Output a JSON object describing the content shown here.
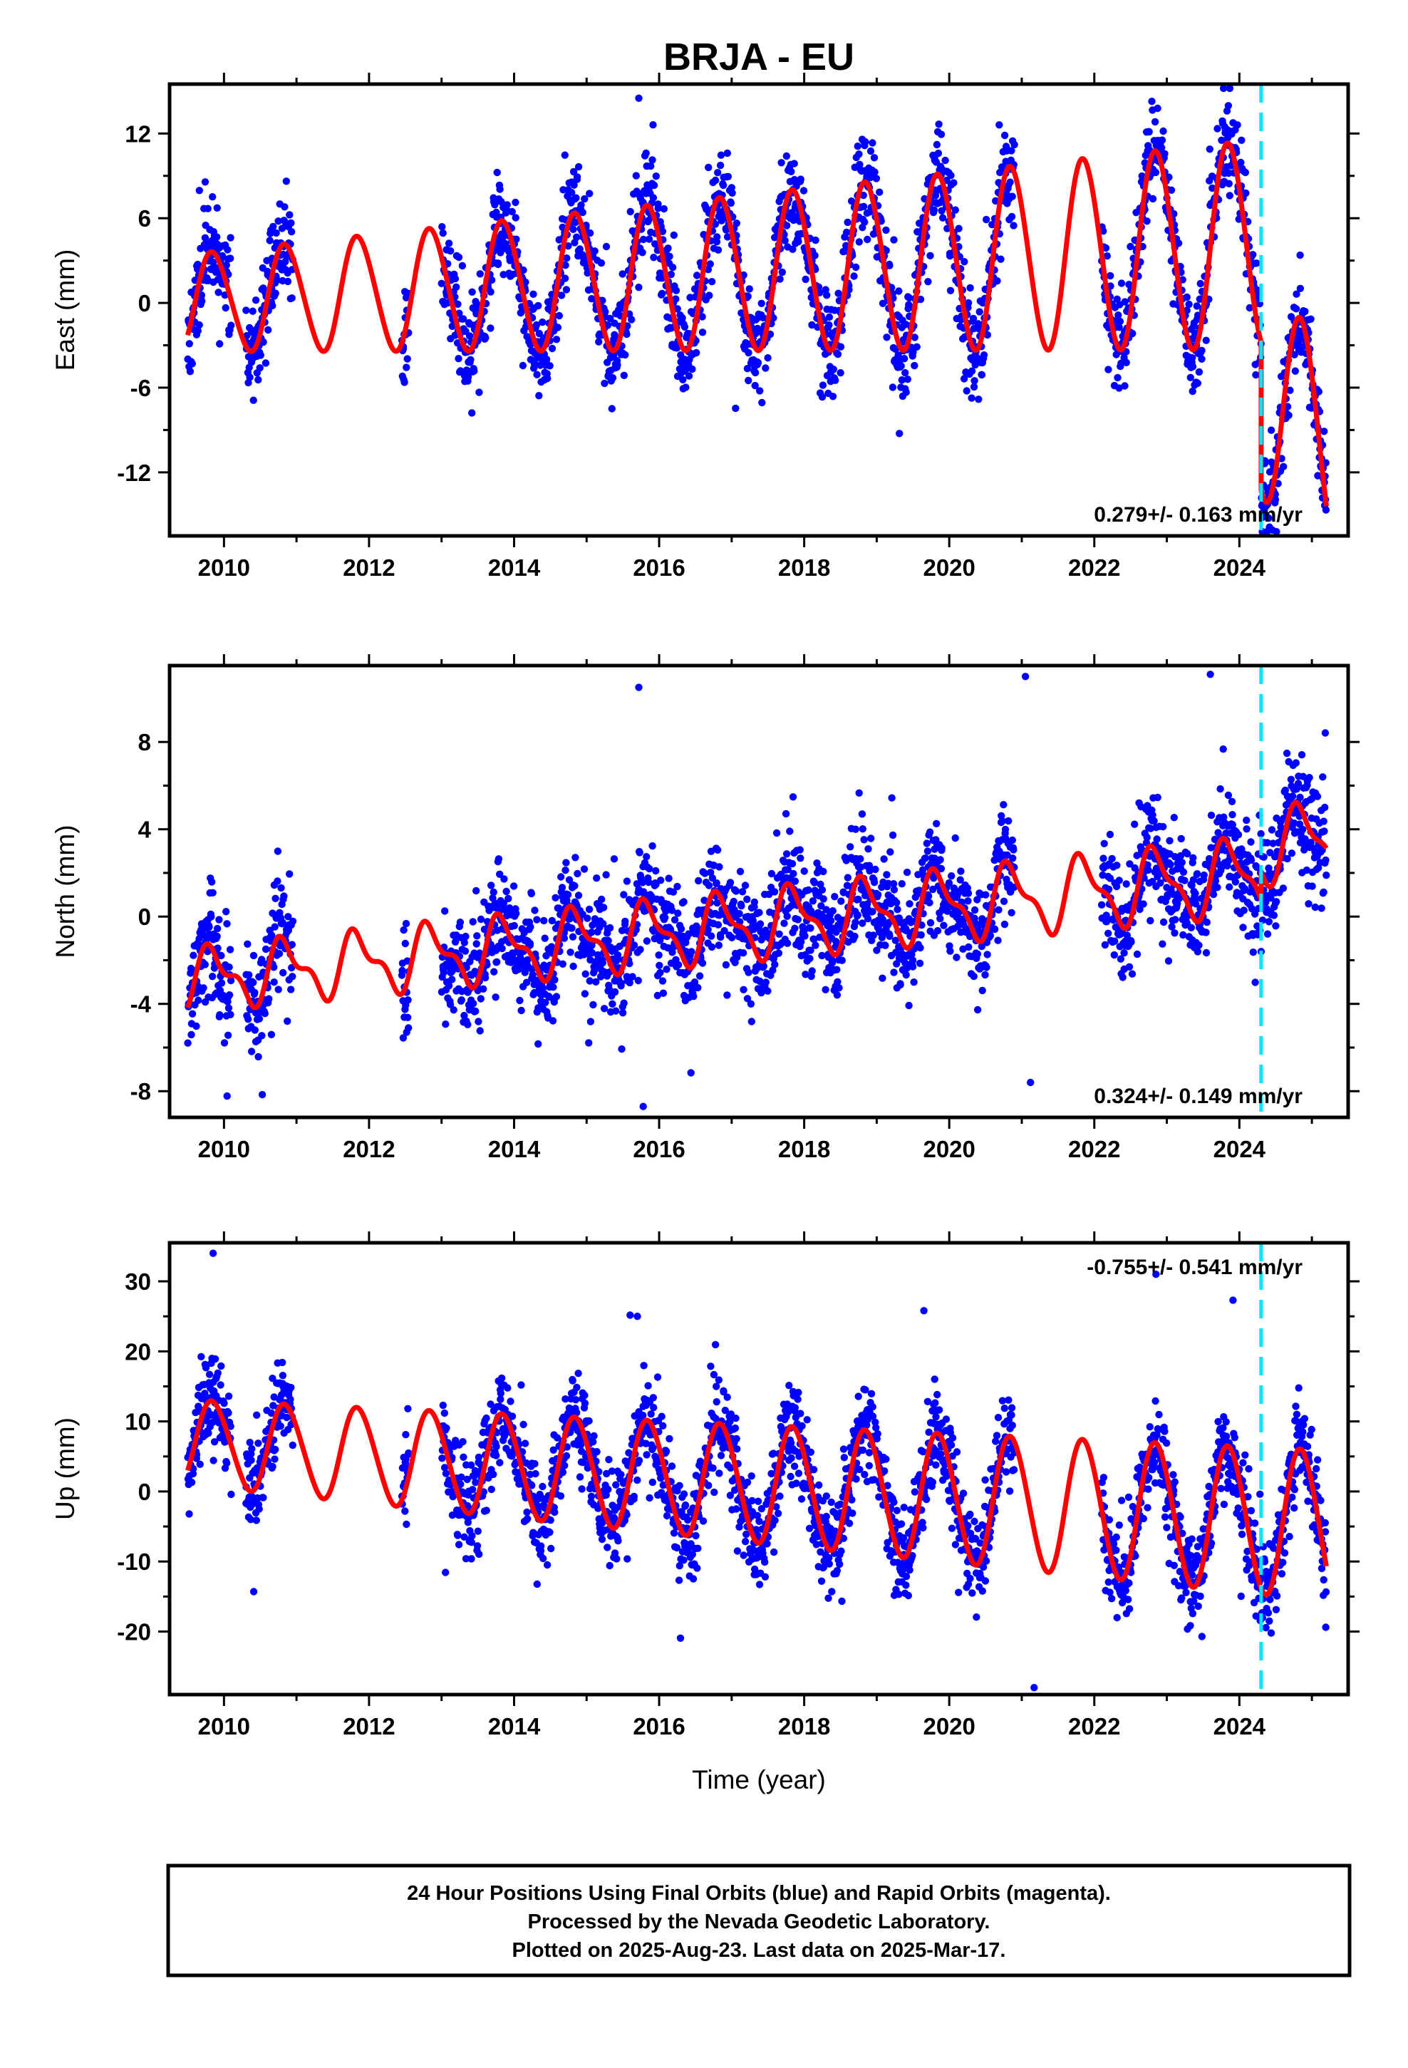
{
  "page_title": "BRJA - EU",
  "chart_data": [
    {
      "id": "east",
      "type": "scatter",
      "ylabel": "East (mm)",
      "xlim": [
        2009.25,
        2025.5
      ],
      "ylim": [
        -16.5,
        15.5
      ],
      "xticks": [
        2010,
        2012,
        2014,
        2016,
        2018,
        2020,
        2022,
        2024
      ],
      "yticks": [
        12,
        6,
        0,
        -6,
        -12
      ],
      "x_tick_labels": [
        "2010",
        "2012",
        "2014",
        "2016",
        "2018",
        "2020",
        "2022",
        "2024"
      ],
      "y_tick_labels": [
        "12",
        "6",
        "0",
        "-6",
        "-12"
      ],
      "rate_label": "0.279+/- 0.163 mm/yr",
      "rate_position": "bottom-right",
      "equipment_change_x": 2024.3,
      "model": {
        "offset": 0.0,
        "trend": 0.279,
        "annual_amplitude": 3.4,
        "annual_growth": 0.08,
        "semiannual_amplitude": 0.3,
        "step_at": 2024.3,
        "step_size": -10.5,
        "post_step_trend": -4.5
      },
      "data_segments": [
        [
          2009.5,
          2010.1
        ],
        [
          2010.3,
          2010.95
        ],
        [
          2012.45,
          2012.55
        ],
        [
          2013.0,
          2020.9
        ],
        [
          2022.1,
          2025.2
        ]
      ],
      "scatter": 4.3,
      "outliers": [
        [
          2015.72,
          14.5
        ],
        [
          2022.82,
          10.3
        ]
      ],
      "series": [
        {
          "name": "Final Orbits",
          "color": "#0000ff"
        },
        {
          "name": "Model",
          "color": "#ff0000"
        }
      ]
    },
    {
      "id": "north",
      "type": "scatter",
      "ylabel": "North (mm)",
      "xlim": [
        2009.25,
        2025.5
      ],
      "ylim": [
        -9.2,
        11.5
      ],
      "xticks": [
        2010,
        2012,
        2014,
        2016,
        2018,
        2020,
        2022,
        2024
      ],
      "yticks": [
        8,
        4,
        0,
        -4,
        -8
      ],
      "x_tick_labels": [
        "2010",
        "2012",
        "2014",
        "2016",
        "2018",
        "2020",
        "2022",
        "2024"
      ],
      "y_tick_labels": [
        "8",
        "4",
        "0",
        "-4",
        "-8"
      ],
      "rate_label": "0.324+/- 0.149 mm/yr",
      "rate_position": "bottom-right",
      "equipment_change_x": 2024.3,
      "model": {
        "offset": -2.9,
        "trend": 0.324,
        "annual_amplitude": 1.2,
        "annual_growth": 0.02,
        "semiannual_amplitude": 0.6,
        "step_at": 2024.3,
        "step_size": 1.3,
        "post_step_trend": 0.0
      },
      "data_segments": [
        [
          2009.5,
          2010.1
        ],
        [
          2010.3,
          2010.95
        ],
        [
          2012.45,
          2012.55
        ],
        [
          2013.0,
          2020.9
        ],
        [
          2022.1,
          2025.2
        ]
      ],
      "scatter": 3.0,
      "outliers": [
        [
          2015.72,
          10.5
        ],
        [
          2015.78,
          -8.7
        ],
        [
          2021.05,
          11.0
        ],
        [
          2023.6,
          11.1
        ],
        [
          2021.12,
          -7.6
        ]
      ],
      "series": [
        {
          "name": "Final Orbits",
          "color": "#0000ff"
        },
        {
          "name": "Model",
          "color": "#ff0000"
        }
      ]
    },
    {
      "id": "up",
      "type": "scatter",
      "ylabel": "Up (mm)",
      "xlabel": "Time (year)",
      "xlim": [
        2009.25,
        2025.5
      ],
      "ylim": [
        -29.0,
        35.5
      ],
      "xticks": [
        2010,
        2012,
        2014,
        2016,
        2018,
        2020,
        2022,
        2024
      ],
      "yticks": [
        30,
        20,
        10,
        0,
        -10,
        -20
      ],
      "x_tick_labels": [
        "2010",
        "2012",
        "2014",
        "2016",
        "2018",
        "2020",
        "2022",
        "2024"
      ],
      "y_tick_labels": [
        "30",
        "20",
        "10",
        "0",
        "-10",
        "-20"
      ],
      "rate_label": "-0.755+/- 0.541 mm/yr",
      "rate_position": "top-right",
      "equipment_change_x": 2024.3,
      "model": {
        "offset": 7.0,
        "trend": -0.755,
        "annual_amplitude": 6.0,
        "annual_growth": 0.05,
        "semiannual_amplitude": 0.5,
        "step_at": 2024.3,
        "step_size": 0.0,
        "post_step_trend": 0.0
      },
      "data_segments": [
        [
          2009.5,
          2010.1
        ],
        [
          2010.3,
          2010.95
        ],
        [
          2012.45,
          2012.55
        ],
        [
          2013.0,
          2020.9
        ],
        [
          2022.1,
          2025.2
        ]
      ],
      "scatter": 8.0,
      "outliers": [
        [
          2009.85,
          34.0
        ],
        [
          2021.17,
          -28.0
        ],
        [
          2019.65,
          25.8
        ],
        [
          2015.7,
          25.0
        ],
        [
          2022.85,
          31.0
        ]
      ],
      "series": [
        {
          "name": "Final Orbits",
          "color": "#0000ff"
        },
        {
          "name": "Model",
          "color": "#ff0000"
        }
      ]
    }
  ],
  "footer": {
    "line1": "24 Hour Positions Using Final Orbits (blue) and Rapid Orbits (magenta).",
    "line2": "Processed by the Nevada Geodetic Laboratory.",
    "line3": "Plotted on 2025-Aug-23. Last data on 2025-Mar-17."
  },
  "colors": {
    "points": "#0000ff",
    "model": "#ff0000",
    "equipment_change": "#00e5ff",
    "frame": "#000000"
  }
}
